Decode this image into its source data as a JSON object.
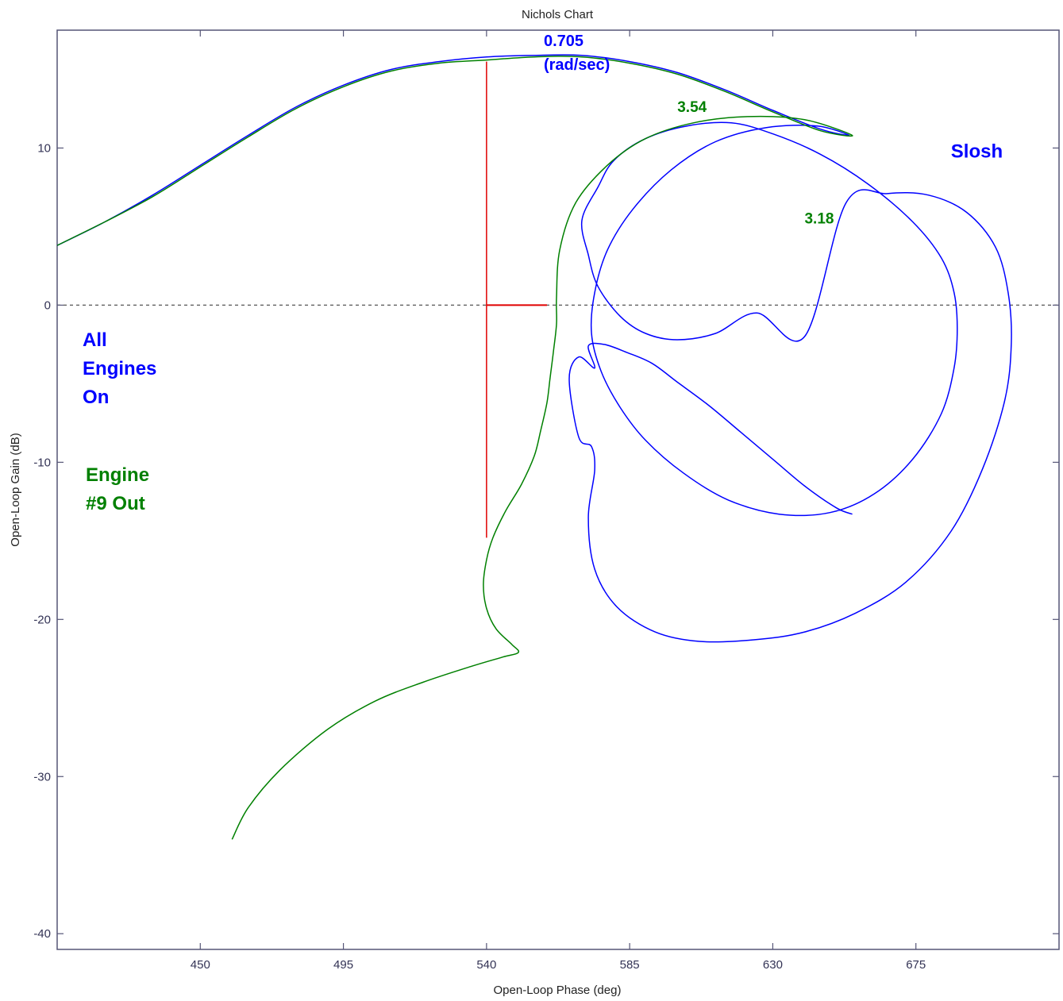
{
  "chart_data": {
    "type": "line",
    "title": "Nichols Chart",
    "xlabel": "Open-Loop Phase (deg)",
    "ylabel": "Open-Loop Gain (dB)",
    "xlim": [
      405,
      720
    ],
    "ylim": [
      -41,
      17.5
    ],
    "xticks": [
      450,
      495,
      540,
      585,
      630,
      675
    ],
    "yticks": [
      -40,
      -30,
      -20,
      -10,
      0,
      10
    ],
    "grid": false,
    "reference_line": {
      "y": 0,
      "style": "dashed",
      "color": "#555555"
    },
    "series": [
      {
        "color": "#0000ff",
        "x": [
          405,
          420,
          435,
          450,
          465,
          480,
          495,
          510,
          525,
          540,
          555,
          570,
          585,
          600,
          615,
          630,
          645,
          654,
          644,
          628,
          612,
          598,
          586,
          578,
          574,
          573,
          576,
          582,
          590,
          602,
          616,
          632,
          648,
          662,
          674,
          683,
          687,
          688,
          687,
          683,
          674,
          660,
          645,
          630,
          617,
          603,
          590,
          580,
          575,
          570,
          572,
          575,
          582,
          590,
          600,
          612,
          625,
          640,
          653,
          666,
          679,
          691,
          700,
          704,
          705,
          703,
          696,
          686,
          672,
          656,
          640,
          624,
          607,
          593,
          581,
          574,
          572,
          574,
          573,
          569,
          566,
          569,
          574,
          572,
          577,
          584,
          592,
          600,
          610,
          620,
          630,
          640,
          650,
          655
        ],
        "y": [
          3.8,
          5.3,
          7.0,
          8.9,
          10.8,
          12.6,
          14.0,
          15.0,
          15.5,
          15.8,
          15.9,
          15.9,
          15.5,
          14.8,
          13.7,
          12.4,
          11.2,
          10.8,
          11.4,
          11.3,
          10.4,
          8.6,
          6.1,
          3.5,
          0.8,
          -1.8,
          -4.2,
          -6.5,
          -8.6,
          -10.7,
          -12.4,
          -13.3,
          -13.2,
          -12.0,
          -9.8,
          -6.9,
          -4.0,
          -1.5,
          0.8,
          3.0,
          5.3,
          7.7,
          9.6,
          10.9,
          11.6,
          11.4,
          10.6,
          9.2,
          7.5,
          5.4,
          3.2,
          1.2,
          -0.7,
          -1.8,
          -2.2,
          -1.8,
          -0.5,
          -2.0,
          6.5,
          7.1,
          7.0,
          5.9,
          3.7,
          0.8,
          -2.4,
          -6.0,
          -10.4,
          -14.4,
          -17.6,
          -19.6,
          -20.8,
          -21.3,
          -21.4,
          -20.8,
          -19.2,
          -16.8,
          -13.5,
          -10.5,
          -9.0,
          -8.4,
          -4.7,
          -3.3,
          -4.0,
          -2.6,
          -2.5,
          -3.0,
          -3.7,
          -4.9,
          -6.4,
          -8.1,
          -9.8,
          -11.5,
          -12.9,
          -13.3
        ]
      },
      {
        "color": "#008000",
        "x": [
          405,
          420,
          435,
          450,
          465,
          480,
          495,
          510,
          525,
          540,
          555,
          570,
          585,
          600,
          615,
          630,
          645,
          655,
          640,
          622,
          605,
          590,
          578,
          568,
          563,
          562,
          562,
          561,
          560,
          559,
          557,
          555,
          551,
          546,
          542,
          540,
          539,
          540,
          543,
          548,
          550,
          545,
          535,
          520,
          505,
          490,
          475,
          465,
          460
        ],
        "y": [
          3.8,
          5.3,
          6.9,
          8.8,
          10.7,
          12.5,
          13.9,
          14.9,
          15.4,
          15.6,
          15.8,
          15.8,
          15.4,
          14.7,
          13.6,
          12.3,
          11.1,
          10.8,
          11.8,
          12.0,
          11.6,
          10.6,
          8.9,
          6.5,
          3.5,
          0.5,
          -1.2,
          -3.0,
          -4.6,
          -6.2,
          -8.0,
          -9.6,
          -11.4,
          -13.1,
          -14.8,
          -16.2,
          -17.8,
          -19.3,
          -20.6,
          -21.6,
          -22.1,
          -22.4,
          -23.0,
          -24.0,
          -25.2,
          -27.0,
          -29.6,
          -32.0,
          -34.0
        ]
      }
    ],
    "markers": [
      {
        "type": "vertical",
        "x": 540,
        "y_from": -14.8,
        "y_to": 15.5,
        "color": "#e00000"
      },
      {
        "type": "horizontal",
        "y": 0,
        "x_from": 540,
        "x_to": 559,
        "color": "#e00000"
      }
    ],
    "annotations": [
      {
        "lines": [
          "0.705",
          "(rad/sec)"
        ],
        "x": 558,
        "y": 16.5,
        "color": "#0000ff",
        "size": 20
      },
      {
        "lines": [
          "3.54"
        ],
        "x": 600,
        "y": 12.3,
        "color": "#008000",
        "size": 19
      },
      {
        "lines": [
          "3.18"
        ],
        "x": 640,
        "y": 5.2,
        "color": "#008000",
        "size": 19
      },
      {
        "lines": [
          "Slosh"
        ],
        "x": 686,
        "y": 9.4,
        "color": "#0000ff",
        "size": 24
      },
      {
        "lines": [
          "All",
          "Engines",
          "On"
        ],
        "x": 413,
        "y": -2.6,
        "color": "#0000ff",
        "size": 24
      },
      {
        "lines": [
          "Engine",
          "#9 Out"
        ],
        "x": 414,
        "y": -11.2,
        "color": "#008000",
        "size": 24
      }
    ]
  }
}
